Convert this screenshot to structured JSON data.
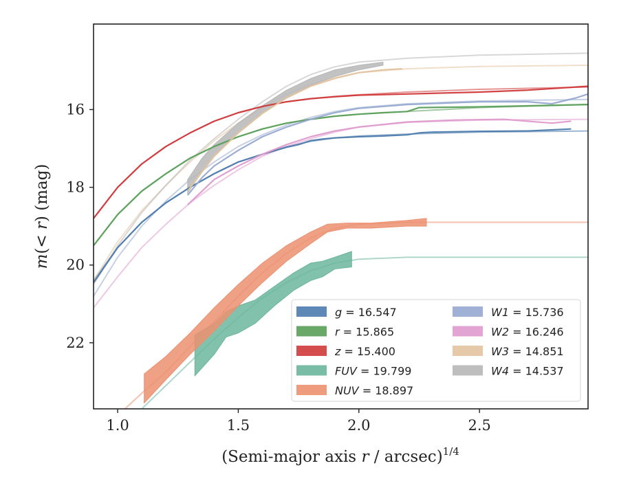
{
  "chart_data": {
    "type": "line",
    "xlabel": "(Semi-major axis r / arcsec)^1/4",
    "ylabel": "m(< r) (mag)",
    "xlim": [
      0.9,
      2.95
    ],
    "ylim": [
      23.7,
      13.8
    ],
    "y_inverted": true,
    "x_ticks": [
      1.0,
      1.5,
      2.0,
      2.5
    ],
    "x_tick_labels": [
      "1.0",
      "1.5",
      "2.0",
      "2.5"
    ],
    "y_ticks": [
      16,
      18,
      20,
      22
    ],
    "y_tick_labels": [
      "16",
      "18",
      "20",
      "22"
    ],
    "grid": false,
    "legend_position": "lower-right",
    "series": [
      {
        "name": "g = 16.547",
        "legend_label": "g = 16.547",
        "color": "#4c7bad",
        "model": [
          [
            0.9,
            20.4
          ],
          [
            1.0,
            19.55
          ],
          [
            1.1,
            18.9
          ],
          [
            1.2,
            18.4
          ],
          [
            1.3,
            18.0
          ],
          [
            1.4,
            17.65
          ],
          [
            1.5,
            17.35
          ],
          [
            1.6,
            17.15
          ],
          [
            1.7,
            16.95
          ],
          [
            1.8,
            16.82
          ],
          [
            1.9,
            16.73
          ],
          [
            2.0,
            16.68
          ],
          [
            2.2,
            16.63
          ],
          [
            2.5,
            16.58
          ],
          [
            2.95,
            16.55
          ]
        ],
        "obs": [
          [
            0.9,
            20.45
          ],
          [
            1.0,
            19.55
          ],
          [
            1.1,
            18.9
          ],
          [
            1.2,
            18.4
          ],
          [
            1.3,
            18.0
          ],
          [
            1.4,
            17.65
          ],
          [
            1.5,
            17.35
          ],
          [
            1.6,
            17.15
          ],
          [
            1.7,
            16.97
          ],
          [
            1.75,
            16.9
          ],
          [
            1.8,
            16.8
          ],
          [
            1.85,
            16.76
          ],
          [
            1.9,
            16.73
          ],
          [
            2.0,
            16.7
          ],
          [
            2.1,
            16.68
          ],
          [
            2.2,
            16.65
          ],
          [
            2.25,
            16.6
          ],
          [
            2.3,
            16.58
          ],
          [
            2.5,
            16.56
          ],
          [
            2.7,
            16.55
          ],
          [
            2.88,
            16.5
          ]
        ]
      },
      {
        "name": "r = 15.865",
        "legend_label": "r = 15.865",
        "color": "#5a9f58",
        "model": [
          [
            0.9,
            19.5
          ],
          [
            1.0,
            18.7
          ],
          [
            1.1,
            18.1
          ],
          [
            1.2,
            17.65
          ],
          [
            1.3,
            17.25
          ],
          [
            1.4,
            16.95
          ],
          [
            1.5,
            16.7
          ],
          [
            1.6,
            16.5
          ],
          [
            1.7,
            16.35
          ],
          [
            1.8,
            16.25
          ],
          [
            1.9,
            16.17
          ],
          [
            2.0,
            16.12
          ],
          [
            2.2,
            16.05
          ],
          [
            2.5,
            15.95
          ],
          [
            2.95,
            15.87
          ]
        ],
        "obs": [
          [
            0.9,
            19.5
          ],
          [
            1.0,
            18.7
          ],
          [
            1.1,
            18.1
          ],
          [
            1.2,
            17.65
          ],
          [
            1.3,
            17.25
          ],
          [
            1.4,
            16.95
          ],
          [
            1.5,
            16.7
          ],
          [
            1.6,
            16.5
          ],
          [
            1.7,
            16.35
          ],
          [
            1.8,
            16.25
          ],
          [
            1.9,
            16.17
          ],
          [
            2.0,
            16.12
          ],
          [
            2.1,
            16.08
          ],
          [
            2.2,
            16.05
          ],
          [
            2.25,
            15.95
          ],
          [
            2.5,
            15.93
          ],
          [
            2.95,
            15.87
          ]
        ]
      },
      {
        "name": "z = 15.400",
        "legend_label": "z = 15.400",
        "color": "#d0393a",
        "model": [
          [
            0.9,
            18.8
          ],
          [
            1.0,
            18.0
          ],
          [
            1.1,
            17.4
          ],
          [
            1.2,
            16.95
          ],
          [
            1.3,
            16.6
          ],
          [
            1.4,
            16.3
          ],
          [
            1.5,
            16.08
          ],
          [
            1.6,
            15.92
          ],
          [
            1.7,
            15.8
          ],
          [
            1.8,
            15.72
          ],
          [
            1.9,
            15.66
          ],
          [
            2.0,
            15.62
          ],
          [
            2.2,
            15.55
          ],
          [
            2.5,
            15.48
          ],
          [
            2.95,
            15.42
          ]
        ],
        "obs": [
          [
            0.9,
            18.8
          ],
          [
            1.0,
            18.0
          ],
          [
            1.1,
            17.4
          ],
          [
            1.2,
            16.95
          ],
          [
            1.3,
            16.6
          ],
          [
            1.4,
            16.3
          ],
          [
            1.5,
            16.08
          ],
          [
            1.6,
            15.92
          ],
          [
            1.7,
            15.8
          ],
          [
            1.8,
            15.72
          ],
          [
            1.9,
            15.67
          ],
          [
            2.0,
            15.63
          ],
          [
            2.2,
            15.6
          ],
          [
            2.5,
            15.55
          ],
          [
            2.7,
            15.5
          ],
          [
            2.95,
            15.4
          ]
        ]
      },
      {
        "name": "W1 = 15.736",
        "legend_label": "W1 = 15.736",
        "color": "#96a9d0",
        "model": [
          [
            0.9,
            20.8
          ],
          [
            1.0,
            19.8
          ],
          [
            1.1,
            19.0
          ],
          [
            1.2,
            18.35
          ],
          [
            1.3,
            17.8
          ],
          [
            1.4,
            17.35
          ],
          [
            1.5,
            16.95
          ],
          [
            1.6,
            16.65
          ],
          [
            1.7,
            16.4
          ],
          [
            1.8,
            16.2
          ],
          [
            1.9,
            16.05
          ],
          [
            2.0,
            15.95
          ],
          [
            2.2,
            15.85
          ],
          [
            2.5,
            15.78
          ],
          [
            2.95,
            15.74
          ]
        ],
        "obs": [
          [
            1.29,
            18.2
          ],
          [
            1.35,
            17.75
          ],
          [
            1.4,
            17.45
          ],
          [
            1.5,
            17.05
          ],
          [
            1.6,
            16.7
          ],
          [
            1.7,
            16.45
          ],
          [
            1.8,
            16.25
          ],
          [
            1.9,
            16.08
          ],
          [
            2.0,
            15.97
          ],
          [
            2.2,
            15.87
          ],
          [
            2.5,
            15.8
          ],
          [
            2.7,
            15.8
          ],
          [
            2.8,
            15.85
          ],
          [
            2.9,
            15.7
          ],
          [
            2.95,
            15.6
          ]
        ]
      },
      {
        "name": "W2 = 16.246",
        "legend_label": "W2 = 16.246",
        "color": "#df9acd",
        "model": [
          [
            0.9,
            21.1
          ],
          [
            1.0,
            20.3
          ],
          [
            1.1,
            19.55
          ],
          [
            1.2,
            18.95
          ],
          [
            1.3,
            18.4
          ],
          [
            1.4,
            17.95
          ],
          [
            1.5,
            17.55
          ],
          [
            1.6,
            17.2
          ],
          [
            1.7,
            16.95
          ],
          [
            1.8,
            16.75
          ],
          [
            1.9,
            16.58
          ],
          [
            2.0,
            16.45
          ],
          [
            2.2,
            16.33
          ],
          [
            2.5,
            16.27
          ],
          [
            2.95,
            16.25
          ]
        ],
        "obs": [
          [
            1.29,
            18.45
          ],
          [
            1.35,
            18.1
          ],
          [
            1.4,
            17.8
          ],
          [
            1.5,
            17.45
          ],
          [
            1.6,
            17.15
          ],
          [
            1.7,
            16.9
          ],
          [
            1.8,
            16.7
          ],
          [
            1.9,
            16.55
          ],
          [
            2.0,
            16.45
          ],
          [
            2.2,
            16.32
          ],
          [
            2.4,
            16.27
          ],
          [
            2.6,
            16.25
          ],
          [
            2.7,
            16.3
          ],
          [
            2.8,
            16.35
          ],
          [
            2.88,
            16.3
          ]
        ]
      },
      {
        "name": "W3 = 14.851",
        "legend_label": "W3 = 14.851",
        "color": "#e2c39e",
        "model": [
          [
            0.9,
            20.4
          ],
          [
            1.0,
            19.4
          ],
          [
            1.1,
            18.6
          ],
          [
            1.2,
            17.95
          ],
          [
            1.3,
            17.35
          ],
          [
            1.4,
            16.8
          ],
          [
            1.5,
            16.35
          ],
          [
            1.6,
            15.95
          ],
          [
            1.7,
            15.6
          ],
          [
            1.8,
            15.35
          ],
          [
            1.9,
            15.18
          ],
          [
            2.0,
            15.05
          ],
          [
            2.2,
            14.95
          ],
          [
            2.5,
            14.89
          ],
          [
            2.95,
            14.86
          ]
        ],
        "obs": [
          [
            1.29,
            18.1
          ],
          [
            1.35,
            17.6
          ],
          [
            1.4,
            17.2
          ],
          [
            1.5,
            16.6
          ],
          [
            1.6,
            16.1
          ],
          [
            1.7,
            15.7
          ],
          [
            1.8,
            15.4
          ],
          [
            1.9,
            15.2
          ],
          [
            2.0,
            15.05
          ],
          [
            2.1,
            14.98
          ],
          [
            2.18,
            14.95
          ]
        ]
      },
      {
        "name": "W4 = 14.537",
        "legend_label": "W4 = 14.537",
        "color": "#b7b7b7",
        "model": [
          [
            0.9,
            20.5
          ],
          [
            1.0,
            19.5
          ],
          [
            1.1,
            18.65
          ],
          [
            1.2,
            17.95
          ],
          [
            1.3,
            17.3
          ],
          [
            1.4,
            16.75
          ],
          [
            1.5,
            16.25
          ],
          [
            1.6,
            15.8
          ],
          [
            1.7,
            15.4
          ],
          [
            1.8,
            15.1
          ],
          [
            1.9,
            14.9
          ],
          [
            2.0,
            14.78
          ],
          [
            2.2,
            14.68
          ],
          [
            2.5,
            14.6
          ],
          [
            2.95,
            14.55
          ]
        ],
        "band": [
          [
            1.29,
            17.8,
            18.15
          ],
          [
            1.35,
            17.25,
            17.6
          ],
          [
            1.4,
            16.9,
            17.2
          ],
          [
            1.5,
            16.35,
            16.6
          ],
          [
            1.6,
            15.9,
            16.1
          ],
          [
            1.7,
            15.5,
            15.7
          ],
          [
            1.8,
            15.2,
            15.38
          ],
          [
            1.9,
            14.98,
            15.15
          ],
          [
            2.0,
            14.86,
            14.98
          ],
          [
            2.1,
            14.78,
            14.86
          ]
        ]
      },
      {
        "name": "FUV = 19.799",
        "legend_label": "FUV = 19.799",
        "color": "#6cb69c",
        "model": [
          [
            1.1,
            23.7
          ],
          [
            1.2,
            23.1
          ],
          [
            1.3,
            22.5
          ],
          [
            1.4,
            21.9
          ],
          [
            1.5,
            21.35
          ],
          [
            1.6,
            20.85
          ],
          [
            1.7,
            20.45
          ],
          [
            1.8,
            20.15
          ],
          [
            1.9,
            19.95
          ],
          [
            2.0,
            19.85
          ],
          [
            2.2,
            19.8
          ],
          [
            2.5,
            19.8
          ],
          [
            2.95,
            19.8
          ]
        ],
        "band": [
          [
            1.32,
            21.8,
            22.85
          ],
          [
            1.4,
            21.5,
            22.3
          ],
          [
            1.45,
            21.2,
            21.85
          ],
          [
            1.5,
            21.05,
            21.75
          ],
          [
            1.57,
            20.9,
            21.5
          ],
          [
            1.65,
            20.55,
            21.05
          ],
          [
            1.73,
            20.2,
            20.65
          ],
          [
            1.8,
            19.95,
            20.4
          ],
          [
            1.85,
            19.9,
            20.3
          ],
          [
            1.9,
            19.8,
            20.1
          ],
          [
            1.97,
            19.65,
            20.05
          ]
        ]
      },
      {
        "name": "NUV = 18.897",
        "legend_label": "NUV = 18.897",
        "color": "#ec9070",
        "model": [
          [
            1.03,
            23.7
          ],
          [
            1.1,
            23.3
          ],
          [
            1.2,
            22.75
          ],
          [
            1.3,
            22.1
          ],
          [
            1.4,
            21.45
          ],
          [
            1.5,
            20.8
          ],
          [
            1.6,
            20.2
          ],
          [
            1.7,
            19.7
          ],
          [
            1.8,
            19.3
          ],
          [
            1.9,
            19.05
          ],
          [
            2.0,
            18.95
          ],
          [
            2.2,
            18.9
          ],
          [
            2.5,
            18.9
          ],
          [
            2.95,
            18.9
          ]
        ],
        "band": [
          [
            1.11,
            22.8,
            23.55
          ],
          [
            1.2,
            22.35,
            22.95
          ],
          [
            1.3,
            21.75,
            22.3
          ],
          [
            1.4,
            21.1,
            21.7
          ],
          [
            1.5,
            20.5,
            21.05
          ],
          [
            1.6,
            19.95,
            20.45
          ],
          [
            1.7,
            19.5,
            19.9
          ],
          [
            1.8,
            19.15,
            19.45
          ],
          [
            1.87,
            18.95,
            19.15
          ],
          [
            1.95,
            18.92,
            19.05
          ],
          [
            2.05,
            18.92,
            19.05
          ],
          [
            2.2,
            18.85,
            19.0
          ],
          [
            2.28,
            18.8,
            19.0
          ]
        ]
      }
    ]
  }
}
